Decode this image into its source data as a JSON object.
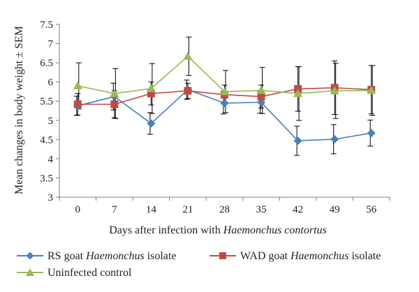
{
  "chart_data": {
    "type": "line",
    "xlabel_parts": [
      "Days after infection with ",
      "Haemonchus contortus"
    ],
    "ylabel": "Mean changes in body weight ± SEM",
    "ylim": [
      3,
      7.5
    ],
    "ytick_step": 0.5,
    "y_ticks": [
      "3",
      "3.5",
      "4",
      "4.5",
      "5",
      "5.5",
      "6",
      "6.5",
      "7",
      "7.5"
    ],
    "categories": [
      "0",
      "7",
      "14",
      "21",
      "28",
      "35",
      "42",
      "49",
      "56"
    ],
    "grid": false,
    "legend_position": "bottom",
    "series": [
      {
        "name_parts": [
          "RS goat ",
          "Haemonchus",
          " isolate"
        ],
        "color": "#4a7ebb",
        "marker": "diamond",
        "values": [
          5.38,
          5.62,
          4.92,
          5.8,
          5.45,
          5.47,
          4.47,
          4.51,
          4.67
        ],
        "error": [
          0.25,
          0.35,
          0.28,
          0.25,
          0.28,
          0.28,
          0.38,
          0.38,
          0.34
        ]
      },
      {
        "name_parts": [
          "WAD goat ",
          "Haemonchus",
          " isolate"
        ],
        "color": "#be4b48",
        "marker": "square",
        "values": [
          5.42,
          5.42,
          5.7,
          5.77,
          5.67,
          5.62,
          5.82,
          5.85,
          5.8
        ],
        "error": [
          0.28,
          0.35,
          0.3,
          0.2,
          0.25,
          0.3,
          0.58,
          0.7,
          0.63
        ]
      },
      {
        "name_parts": [
          "Uninfected control",
          "",
          ""
        ],
        "color": "#98b954",
        "marker": "triangle",
        "values": [
          5.9,
          5.7,
          5.83,
          6.67,
          5.75,
          5.78,
          5.7,
          5.77,
          5.78
        ],
        "error": [
          0.6,
          0.65,
          0.65,
          0.5,
          0.55,
          0.6,
          0.7,
          0.72,
          0.65
        ]
      }
    ]
  }
}
